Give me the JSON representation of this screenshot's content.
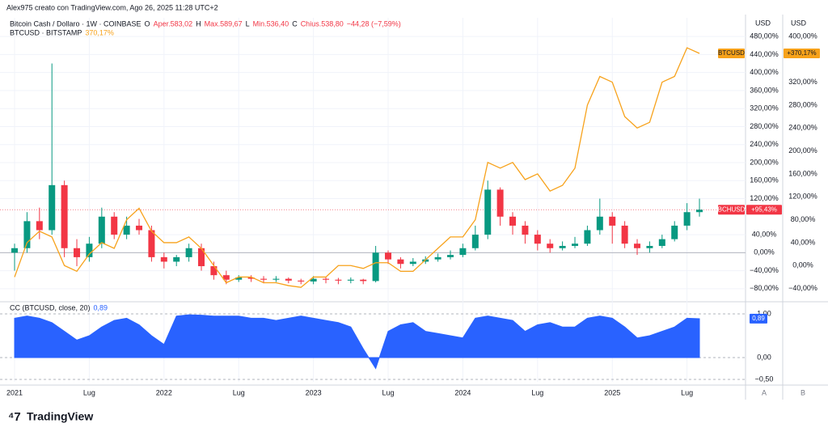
{
  "header": "Alex975 creato con TradingView.com, Ago 26, 2025 11:28 UTC+2",
  "logo": "TradingView",
  "axis_buttons": [
    "A",
    "B"
  ],
  "chart_data": [
    {
      "type": "candlestick",
      "name": "BCHUSD",
      "legend": "Bitcoin Cash / Dollaro · 1W · COINBASE",
      "ohlc": [
        {
          "key": "O",
          "label": "Aper.583,02"
        },
        {
          "key": "H",
          "label": "Max.589,67"
        },
        {
          "key": "L",
          "label": "Min.536,40"
        },
        {
          "key": "C",
          "label": "Chius.538,80"
        }
      ],
      "change": "−44,28 (−7,59%)",
      "up_color": "#089981",
      "down_color": "#f23645",
      "last_label": "+95,43%",
      "y_unit": "USD",
      "y2_unit": "USD",
      "x": [
        0,
        1,
        2,
        3,
        4,
        5,
        6,
        7,
        8,
        9,
        10,
        11,
        12,
        13,
        14,
        15,
        16,
        17,
        18,
        19,
        20,
        21,
        22,
        23,
        24,
        25,
        26,
        27,
        28,
        29,
        30,
        31,
        32,
        33,
        34,
        35,
        36,
        37,
        38,
        39,
        40,
        41,
        42,
        43,
        44,
        45,
        46,
        47,
        48,
        49,
        50,
        51,
        52,
        53,
        54,
        55
      ],
      "open": [
        0,
        10,
        70,
        50,
        150,
        10,
        -10,
        20,
        80,
        40,
        60,
        50,
        -10,
        -20,
        -10,
        10,
        -30,
        -50,
        -60,
        -55,
        -58,
        -60,
        -58,
        -62,
        -64,
        -58,
        -60,
        -62,
        -60,
        -63,
        0,
        -15,
        -25,
        -20,
        -15,
        -10,
        -5,
        10,
        40,
        140,
        80,
        60,
        40,
        20,
        10,
        15,
        20,
        50,
        80,
        60,
        20,
        10,
        15,
        30,
        60,
        90
      ],
      "high": [
        20,
        90,
        100,
        420,
        160,
        30,
        35,
        100,
        90,
        80,
        75,
        60,
        0,
        -5,
        20,
        20,
        -20,
        -40,
        -50,
        -50,
        -52,
        -52,
        -55,
        -58,
        -52,
        -55,
        -56,
        -55,
        -58,
        15,
        5,
        -10,
        -12,
        -8,
        -2,
        5,
        20,
        60,
        160,
        145,
        90,
        70,
        50,
        30,
        25,
        35,
        60,
        120,
        90,
        70,
        30,
        25,
        40,
        70,
        110,
        120
      ],
      "low": [
        -40,
        0,
        30,
        40,
        -10,
        -30,
        -20,
        10,
        30,
        30,
        40,
        -20,
        -35,
        -30,
        -20,
        -40,
        -60,
        -70,
        -65,
        -65,
        -68,
        -65,
        -68,
        -70,
        -70,
        -68,
        -70,
        -68,
        -70,
        -66,
        -25,
        -35,
        -30,
        -25,
        -20,
        -15,
        -10,
        5,
        30,
        60,
        40,
        20,
        5,
        0,
        5,
        10,
        15,
        40,
        20,
        10,
        -5,
        0,
        10,
        25,
        50,
        80
      ],
      "close": [
        10,
        70,
        50,
        150,
        10,
        -10,
        20,
        80,
        40,
        60,
        50,
        -10,
        -20,
        -10,
        10,
        -30,
        -50,
        -60,
        -55,
        -58,
        -60,
        -58,
        -62,
        -64,
        -58,
        -60,
        -62,
        -60,
        -63,
        0,
        -15,
        -25,
        -20,
        -15,
        -10,
        -5,
        10,
        40,
        140,
        80,
        60,
        40,
        20,
        10,
        15,
        20,
        50,
        80,
        60,
        20,
        10,
        15,
        30,
        60,
        90,
        95.43
      ],
      "xlim": [
        -1.17,
        58.7
      ],
      "xticks": [
        {
          "value": 0,
          "label": "2021"
        },
        {
          "value": 6,
          "label": "Lug"
        },
        {
          "value": 12,
          "label": "2022"
        },
        {
          "value": 18,
          "label": "Lug"
        },
        {
          "value": 24,
          "label": "2023"
        },
        {
          "value": 30,
          "label": "Lug"
        },
        {
          "value": 36,
          "label": "2024"
        },
        {
          "value": 42,
          "label": "Lug"
        },
        {
          "value": 48,
          "label": "2025"
        },
        {
          "value": 54,
          "label": "Lug"
        }
      ],
      "ylim": [
        -103.6,
        503.6
      ],
      "yticks": [
        {
          "value": 480,
          "label": "480,00%"
        },
        {
          "value": 440,
          "label": "440,00%"
        },
        {
          "value": 400,
          "label": "400,00%"
        },
        {
          "value": 360,
          "label": "360,00%"
        },
        {
          "value": 320,
          "label": "320,00%"
        },
        {
          "value": 280,
          "label": "280,00%"
        },
        {
          "value": 240,
          "label": "240,00%"
        },
        {
          "value": 200,
          "label": "200,00%"
        },
        {
          "value": 160,
          "label": "160,00%"
        },
        {
          "value": 120,
          "label": "120,00%"
        },
        {
          "value": 40,
          "label": "40,00%"
        },
        {
          "value": 0,
          "label": "0,00%"
        },
        {
          "value": -40,
          "label": "−40,00%"
        },
        {
          "value": -80,
          "label": "−80,00%"
        }
      ],
      "y2lim": [
        -58.9,
        418.2
      ],
      "y2ticks": [
        {
          "value": 400,
          "label": "400,00%"
        },
        {
          "value": 320,
          "label": "320,00%"
        },
        {
          "value": 280,
          "label": "280,00%"
        },
        {
          "value": 240,
          "label": "240,00%"
        },
        {
          "value": 200,
          "label": "200,00%"
        },
        {
          "value": 160,
          "label": "160,00%"
        },
        {
          "value": 120,
          "label": "120,00%"
        },
        {
          "value": 80,
          "label": "80,00%"
        },
        {
          "value": 40,
          "label": "40,00%"
        },
        {
          "value": 0,
          "label": "0,00%"
        },
        {
          "value": -40,
          "label": "−40,00%"
        }
      ],
      "grid": true,
      "series": [
        {
          "type": "line",
          "name": "BTCUSD",
          "legend": "BTCUSD · BITSTAMP",
          "legend_value": "370,17%",
          "last_label": "+370,17%",
          "color": "#f7a21b",
          "axis": "y2",
          "values": [
            -20,
            40,
            60,
            50,
            0,
            -10,
            20,
            40,
            30,
            80,
            100,
            60,
            40,
            40,
            50,
            30,
            0,
            -30,
            -20,
            -20,
            -30,
            -30,
            -35,
            -38,
            -20,
            -20,
            0,
            0,
            -5,
            5,
            5,
            -10,
            -10,
            10,
            30,
            50,
            50,
            80,
            180,
            170,
            180,
            150,
            160,
            130,
            140,
            170,
            280,
            330,
            320,
            260,
            240,
            250,
            320,
            330,
            380,
            370.17
          ]
        }
      ]
    },
    {
      "type": "area",
      "legend": "CC (BTCUSD, close, 20)",
      "legend_value": "0,89",
      "last_label": "0,89",
      "color": "#2962ff",
      "values": [
        0.9,
        0.95,
        0.9,
        0.8,
        0.6,
        0.4,
        0.5,
        0.7,
        0.85,
        0.9,
        0.75,
        0.5,
        0.3,
        0.95,
        0.98,
        0.97,
        0.95,
        0.95,
        0.95,
        0.9,
        0.9,
        0.85,
        0.9,
        0.95,
        0.9,
        0.85,
        0.8,
        0.7,
        0.2,
        -0.25,
        0.6,
        0.75,
        0.8,
        0.6,
        0.55,
        0.5,
        0.45,
        0.9,
        0.95,
        0.9,
        0.85,
        0.6,
        0.75,
        0.8,
        0.7,
        0.7,
        0.9,
        0.95,
        0.9,
        0.7,
        0.45,
        0.5,
        0.6,
        0.7,
        0.9,
        0.89
      ],
      "ylim": [
        -0.556,
        1.148
      ],
      "yticks": [
        {
          "value": 1,
          "label": "1,00"
        },
        {
          "value": 0,
          "label": "0,00"
        },
        {
          "value": -0.5,
          "label": "−0,50"
        }
      ]
    }
  ]
}
